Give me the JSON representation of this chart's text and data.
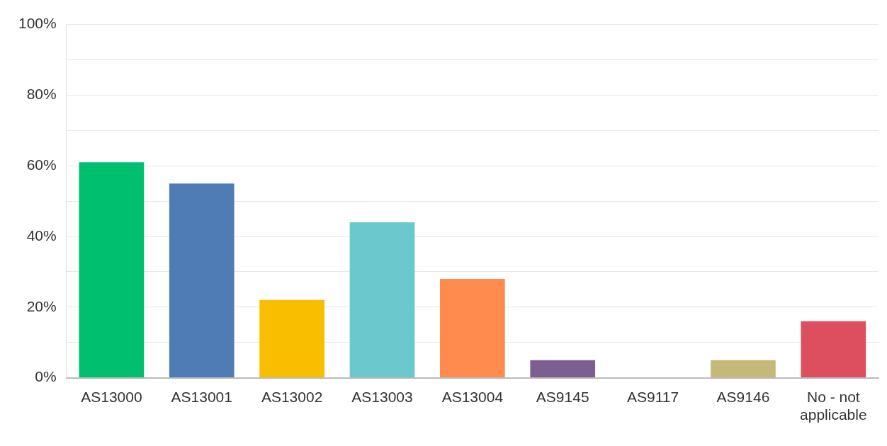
{
  "chart_data": {
    "type": "bar",
    "categories": [
      "AS13000",
      "AS13001",
      "AS13002",
      "AS13003",
      "AS13004",
      "AS9145",
      "AS9117",
      "AS9146",
      "No - not applicable"
    ],
    "values": [
      61,
      55,
      22,
      44,
      28,
      5,
      0,
      5,
      16
    ],
    "colors": [
      "#00bf6f",
      "#507cb6",
      "#f9be00",
      "#6bc8cd",
      "#ff8b4f",
      "#7d5e90",
      "#d25f90",
      "#c6b879",
      "#dd4e5e"
    ],
    "ylim": [
      0,
      100
    ],
    "yticks": [
      {
        "value": 0,
        "label": "0%"
      },
      {
        "value": 10,
        "label": null
      },
      {
        "value": 20,
        "label": "20%"
      },
      {
        "value": 30,
        "label": null
      },
      {
        "value": 40,
        "label": "40%"
      },
      {
        "value": 50,
        "label": null
      },
      {
        "value": 60,
        "label": "60%"
      },
      {
        "value": 70,
        "label": null
      },
      {
        "value": 80,
        "label": "80%"
      },
      {
        "value": 90,
        "label": null
      },
      {
        "value": 100,
        "label": "100%"
      }
    ],
    "grid": "y"
  }
}
